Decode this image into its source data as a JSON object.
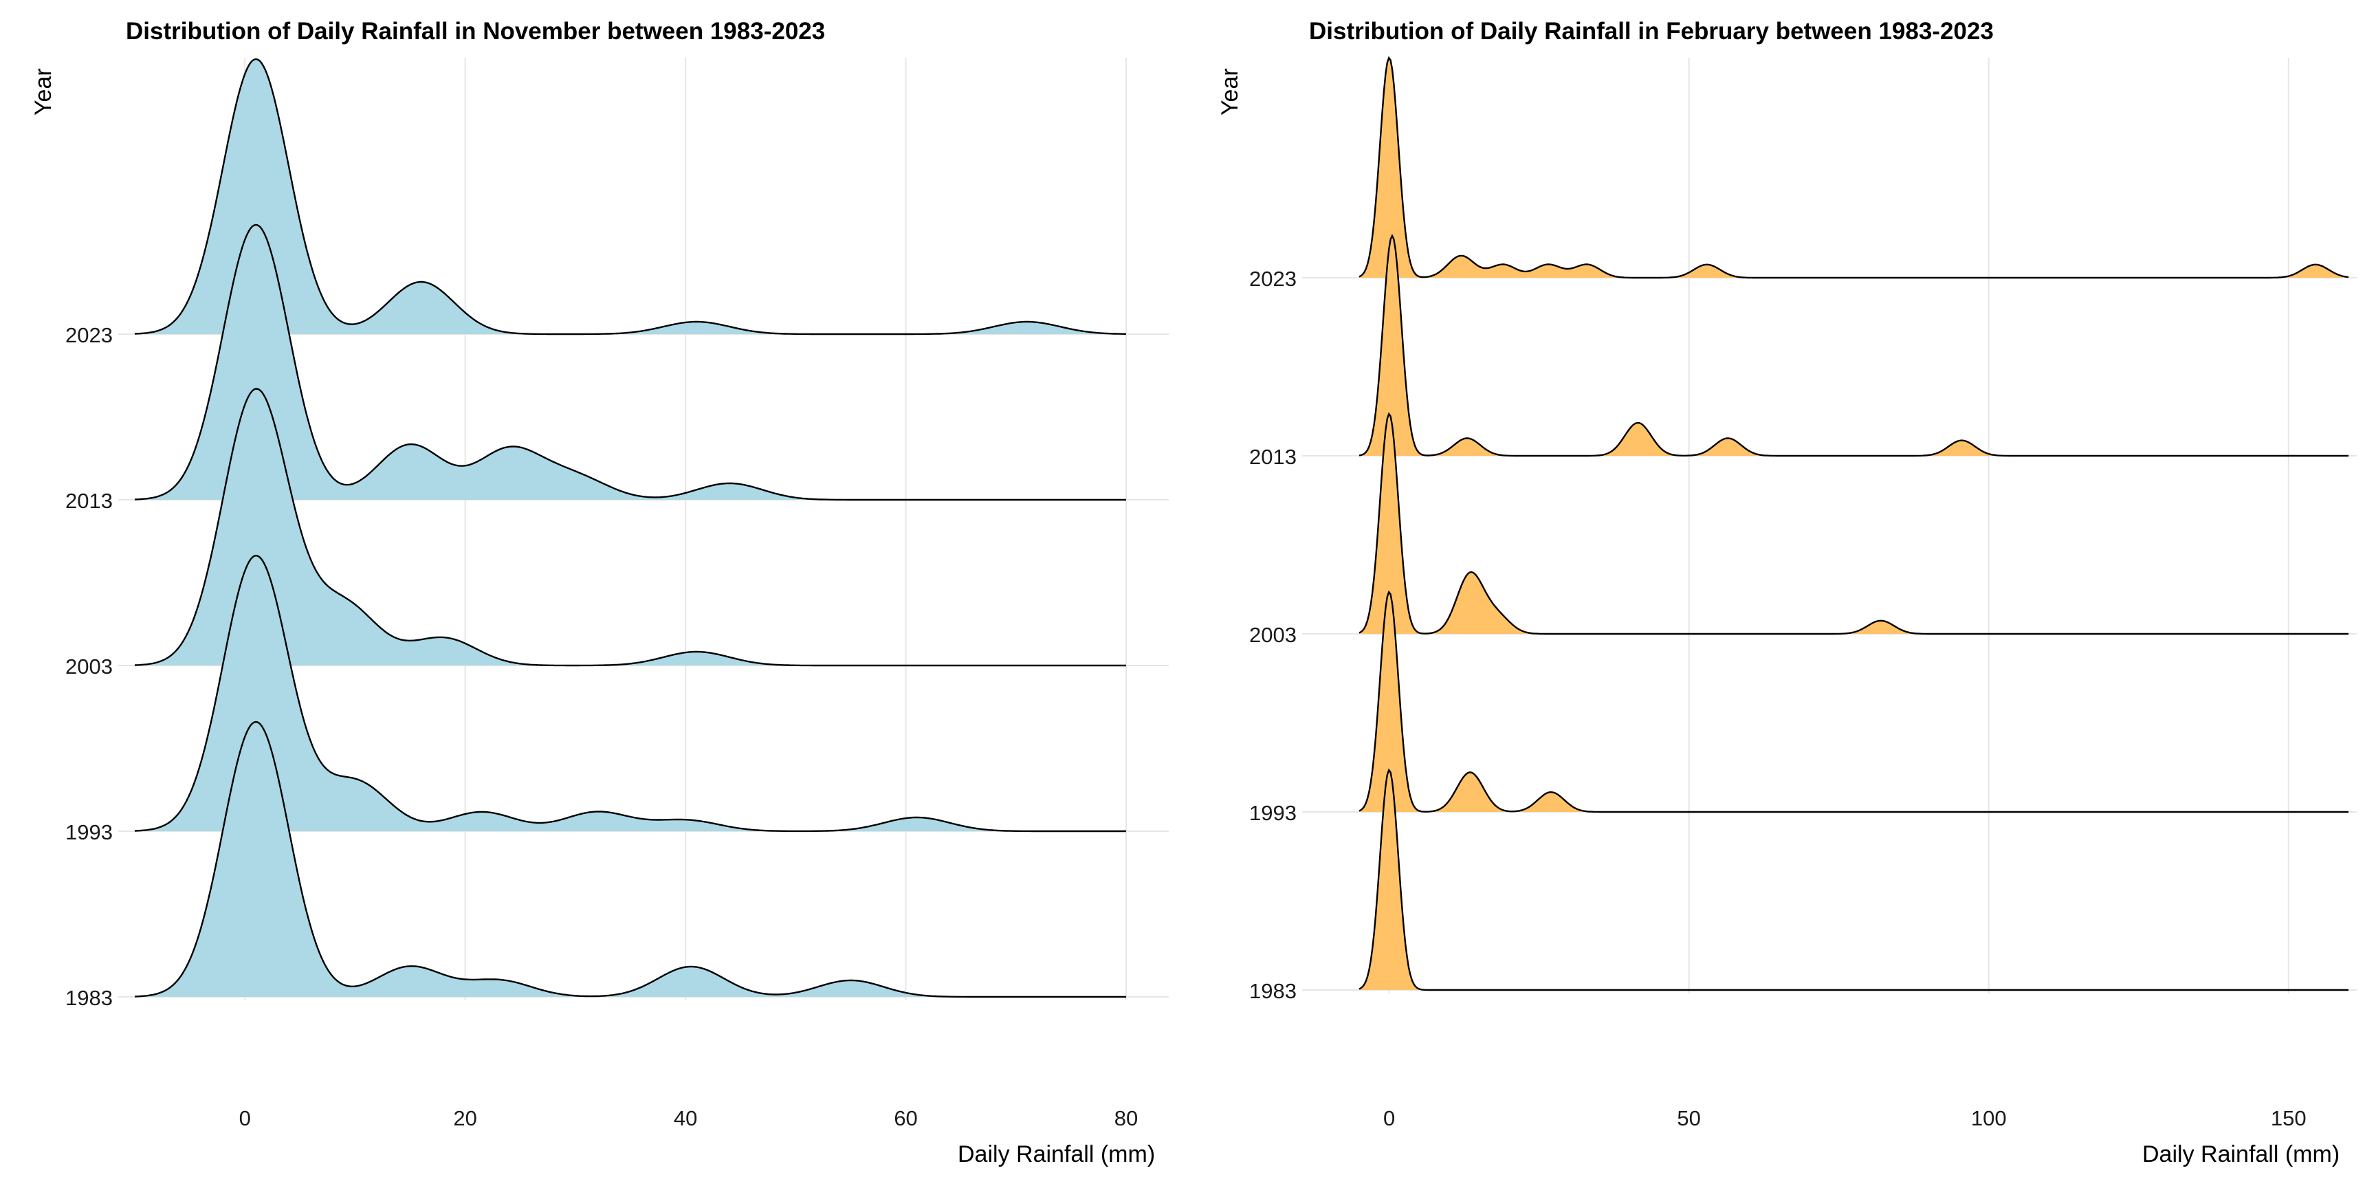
{
  "chart_data": [
    {
      "type": "ridgeline-density",
      "title": "Distribution of Daily Rainfall in November between 1983-2023",
      "xlabel": "Daily Rainfall (mm)",
      "ylabel": "Year",
      "xlim": [
        -10,
        80
      ],
      "xticks": [
        0,
        20,
        40,
        60,
        80
      ],
      "grid": true,
      "fill_color": "#ADD8E6",
      "line_color": "#000000",
      "series": [
        {
          "name": "1983",
          "peaks": [
            [
              1,
              1.0
            ],
            [
              15,
              0.11
            ],
            [
              23,
              0.06
            ],
            [
              40.5,
              0.11
            ],
            [
              55,
              0.06
            ]
          ],
          "x_end": 80
        },
        {
          "name": "1993",
          "peaks": [
            [
              1,
              1.0
            ],
            [
              10,
              0.18
            ],
            [
              21.5,
              0.07
            ],
            [
              32,
              0.07
            ],
            [
              40,
              0.04
            ],
            [
              61,
              0.05
            ]
          ],
          "x_end": 80
        },
        {
          "name": "2003",
          "peaks": [
            [
              1,
              1.0
            ],
            [
              9,
              0.22
            ],
            [
              18,
              0.1
            ],
            [
              41,
              0.05
            ]
          ],
          "x_end": 80
        },
        {
          "name": "2013",
          "peaks": [
            [
              1,
              1.0
            ],
            [
              15,
              0.2
            ],
            [
              24,
              0.18
            ],
            [
              30,
              0.08
            ],
            [
              44,
              0.06
            ]
          ],
          "x_end": 80
        },
        {
          "name": "2023",
          "peaks": [
            [
              1,
              1.0
            ],
            [
              16,
              0.19
            ],
            [
              41,
              0.045
            ],
            [
              71,
              0.045
            ]
          ],
          "x_end": 80
        }
      ]
    },
    {
      "type": "ridgeline-density",
      "title": "Distribution of Daily Rainfall in February between 1983-2023",
      "xlabel": "Daily Rainfall (mm)",
      "ylabel": "Year",
      "xlim": [
        -5,
        160
      ],
      "xticks": [
        0,
        50,
        100,
        150
      ],
      "grid": true,
      "fill_color": "#FFC266",
      "line_color": "#000000",
      "series": [
        {
          "name": "1983",
          "peaks": [
            [
              0,
              1.0
            ]
          ],
          "x_end": 160
        },
        {
          "name": "1993",
          "peaks": [
            [
              0,
              1.0
            ],
            [
              13.5,
              0.18
            ],
            [
              27,
              0.09
            ]
          ],
          "x_end": 160
        },
        {
          "name": "2003",
          "peaks": [
            [
              0,
              1.0
            ],
            [
              13.5,
              0.27
            ],
            [
              18,
              0.08
            ],
            [
              82,
              0.06
            ]
          ],
          "x_end": 160
        },
        {
          "name": "2013",
          "peaks": [
            [
              0.5,
              1.0
            ],
            [
              13,
              0.08
            ],
            [
              41.5,
              0.15
            ],
            [
              56.5,
              0.08
            ],
            [
              95.5,
              0.07
            ]
          ],
          "x_end": 160
        },
        {
          "name": "2023",
          "peaks": [
            [
              0,
              1.0
            ],
            [
              12,
              0.1
            ],
            [
              19,
              0.06
            ],
            [
              26.5,
              0.06
            ],
            [
              33,
              0.06
            ],
            [
              53,
              0.06
            ],
            [
              154.5,
              0.06
            ]
          ],
          "x_end": 160
        }
      ]
    }
  ]
}
